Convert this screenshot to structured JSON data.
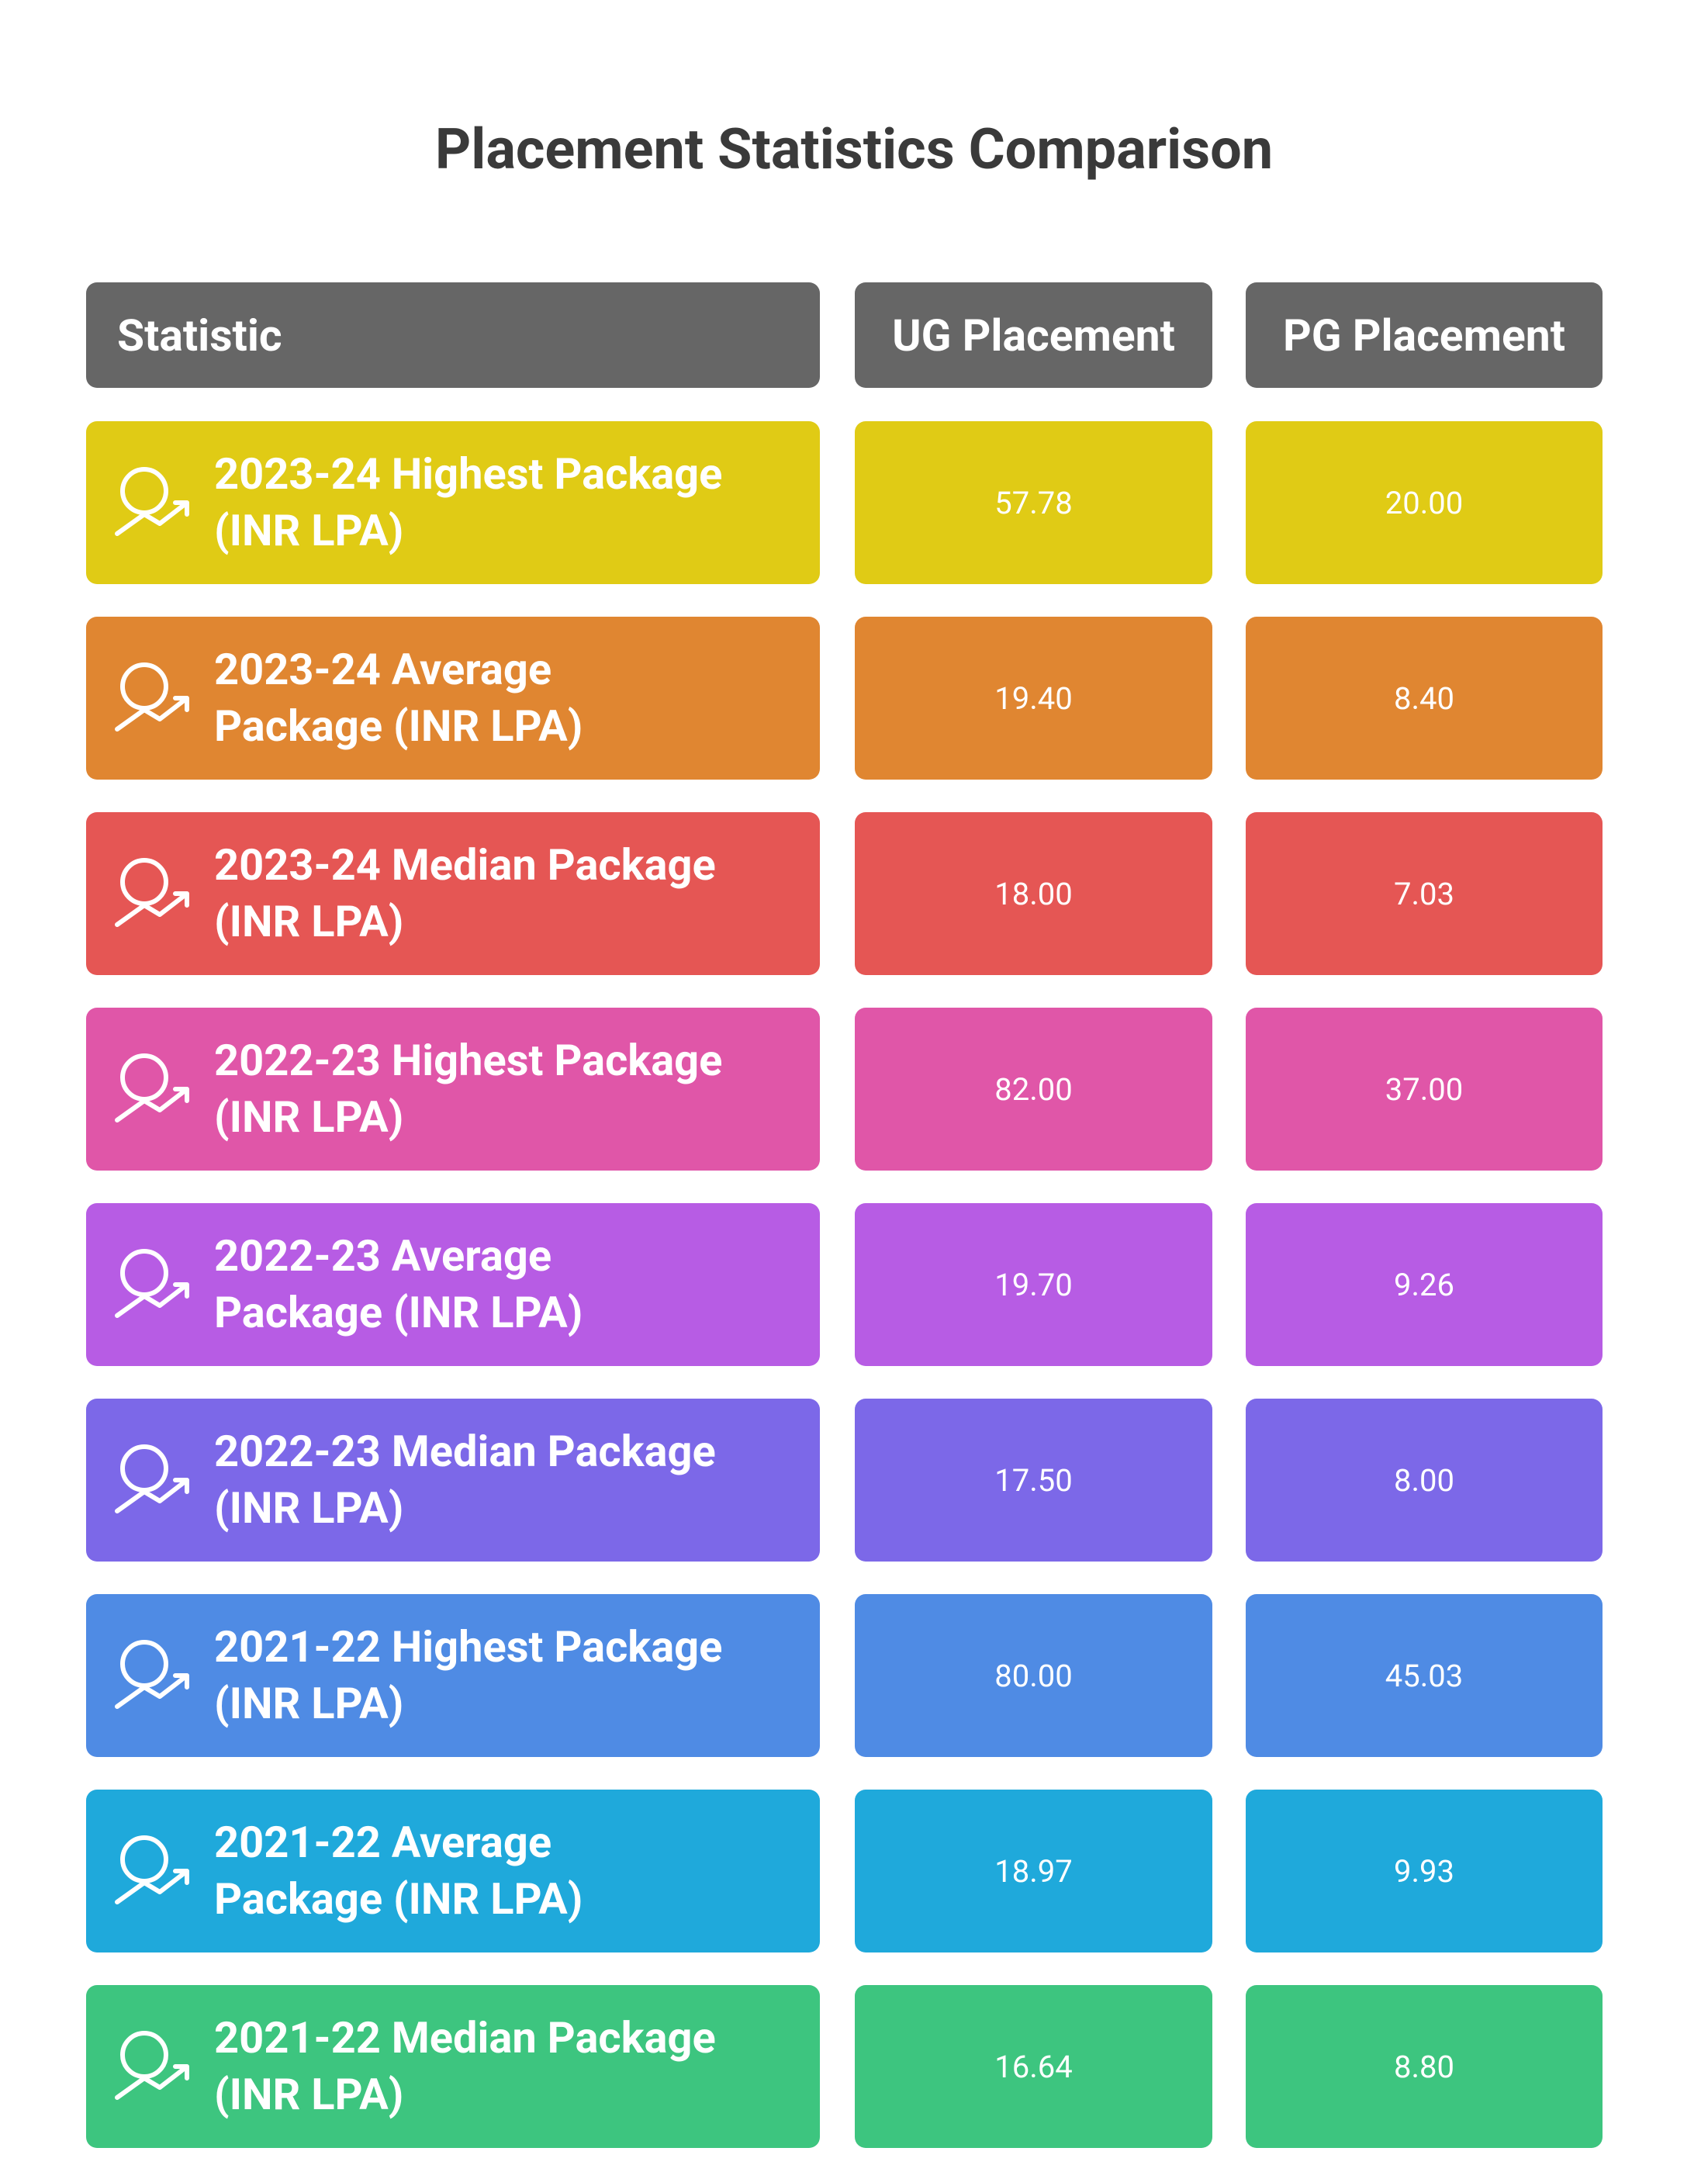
{
  "title": "Placement Statistics Comparison",
  "table": {
    "header": [
      "Statistic",
      "UG Placement",
      "PG Placement"
    ],
    "rows": [
      {
        "label": [
          "2023-24 Highest Package",
          "(INR LPA)"
        ],
        "ug": "57.78",
        "pg": "20.00",
        "color": "#e0cb15"
      },
      {
        "label": [
          "2023-24 Average",
          "Package (INR LPA)"
        ],
        "ug": "19.40",
        "pg": "8.40",
        "color": "#e08631"
      },
      {
        "label": [
          "2023-24 Median Package",
          "(INR LPA)"
        ],
        "ug": "18.00",
        "pg": "7.03",
        "color": "#e55654"
      },
      {
        "label": [
          "2022-23 Highest Package",
          "(INR LPA)"
        ],
        "ug": "82.00",
        "pg": "37.00",
        "color": "#e056a8"
      },
      {
        "label": [
          "2022-23 Average",
          "Package (INR LPA)"
        ],
        "ug": "19.70",
        "pg": "9.26",
        "color": "#b75ce4"
      },
      {
        "label": [
          "2022-23 Median Package",
          "(INR LPA)"
        ],
        "ug": "17.50",
        "pg": "8.00",
        "color": "#7c68e8"
      },
      {
        "label": [
          "2021-22 Highest Package",
          "(INR LPA)"
        ],
        "ug": "80.00",
        "pg": "45.03",
        "color": "#4f8be4"
      },
      {
        "label": [
          "2021-22 Average",
          "Package (INR LPA)"
        ],
        "ug": "18.97",
        "pg": "9.93",
        "color": "#1fa9db"
      },
      {
        "label": [
          "2021-22 Median Package",
          "(INR LPA)"
        ],
        "ug": "16.64",
        "pg": "8.80",
        "color": "#3dc57f"
      }
    ]
  }
}
